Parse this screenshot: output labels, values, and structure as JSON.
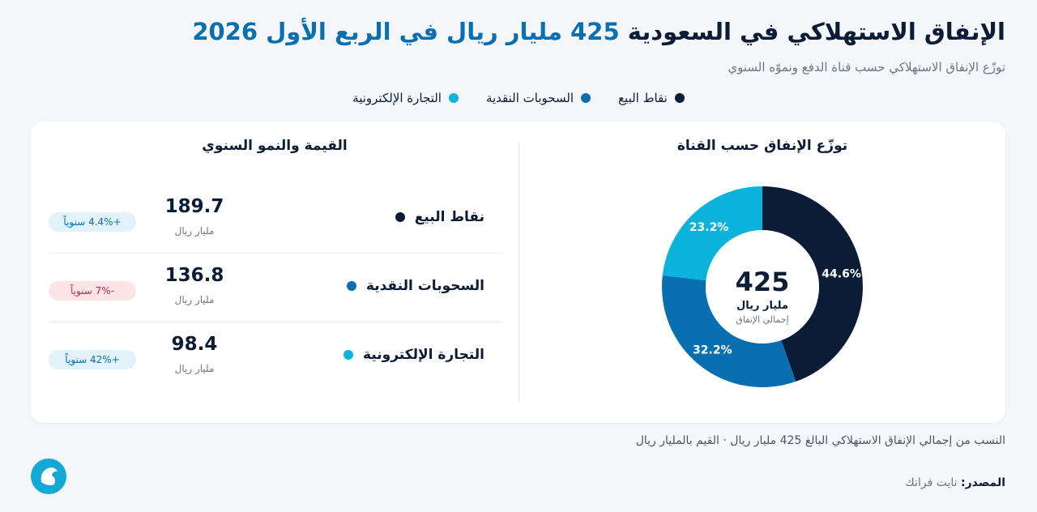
{
  "header": {
    "title_main": "الإنفاق الاستهلاكي في السعودية",
    "title_highlight": "425 مليار ريال في الربع الأول 2026",
    "subtitle": "توزّع الإنفاق الاستهلاكي حسب قناة الدفع ونموّه السنوي"
  },
  "chart_data": {
    "type": "pie",
    "donut": true,
    "title": "توزّع الإنفاق حسب القناة",
    "categories": [
      "نقاط البيع",
      "السحوبات النقدية",
      "التجارة الإلكترونية"
    ],
    "values": [
      44.6,
      32.2,
      23.2
    ],
    "value_labels": [
      "44.6%",
      "32.2%",
      "23.2%"
    ],
    "colors": [
      "#0b1d36",
      "#0a6fb0",
      "#0bb3dc"
    ],
    "center_value": 425,
    "center_unit": "مليار ريال",
    "center_label": "إجمالي الإنفاق"
  },
  "table": {
    "title": "القيمة والنمو السنوي",
    "rows": [
      {
        "value": 189.7,
        "unit": "مليار ريال",
        "growth": "+4.4% سنوياً"
      },
      {
        "value": 136.8,
        "unit": "مليار ريال",
        "growth": "-7% سنوياً"
      },
      {
        "value": 98.4,
        "unit": "مليار ريال",
        "growth": "+42% سنوياً"
      }
    ]
  },
  "footer": {
    "note": "النسب من إجمالي الإنفاق الاستهلاكي البالغ 425 مليار ريال · القيم بالمليار ريال",
    "source_label": "المصدر:",
    "source": "نايت فرانك"
  }
}
